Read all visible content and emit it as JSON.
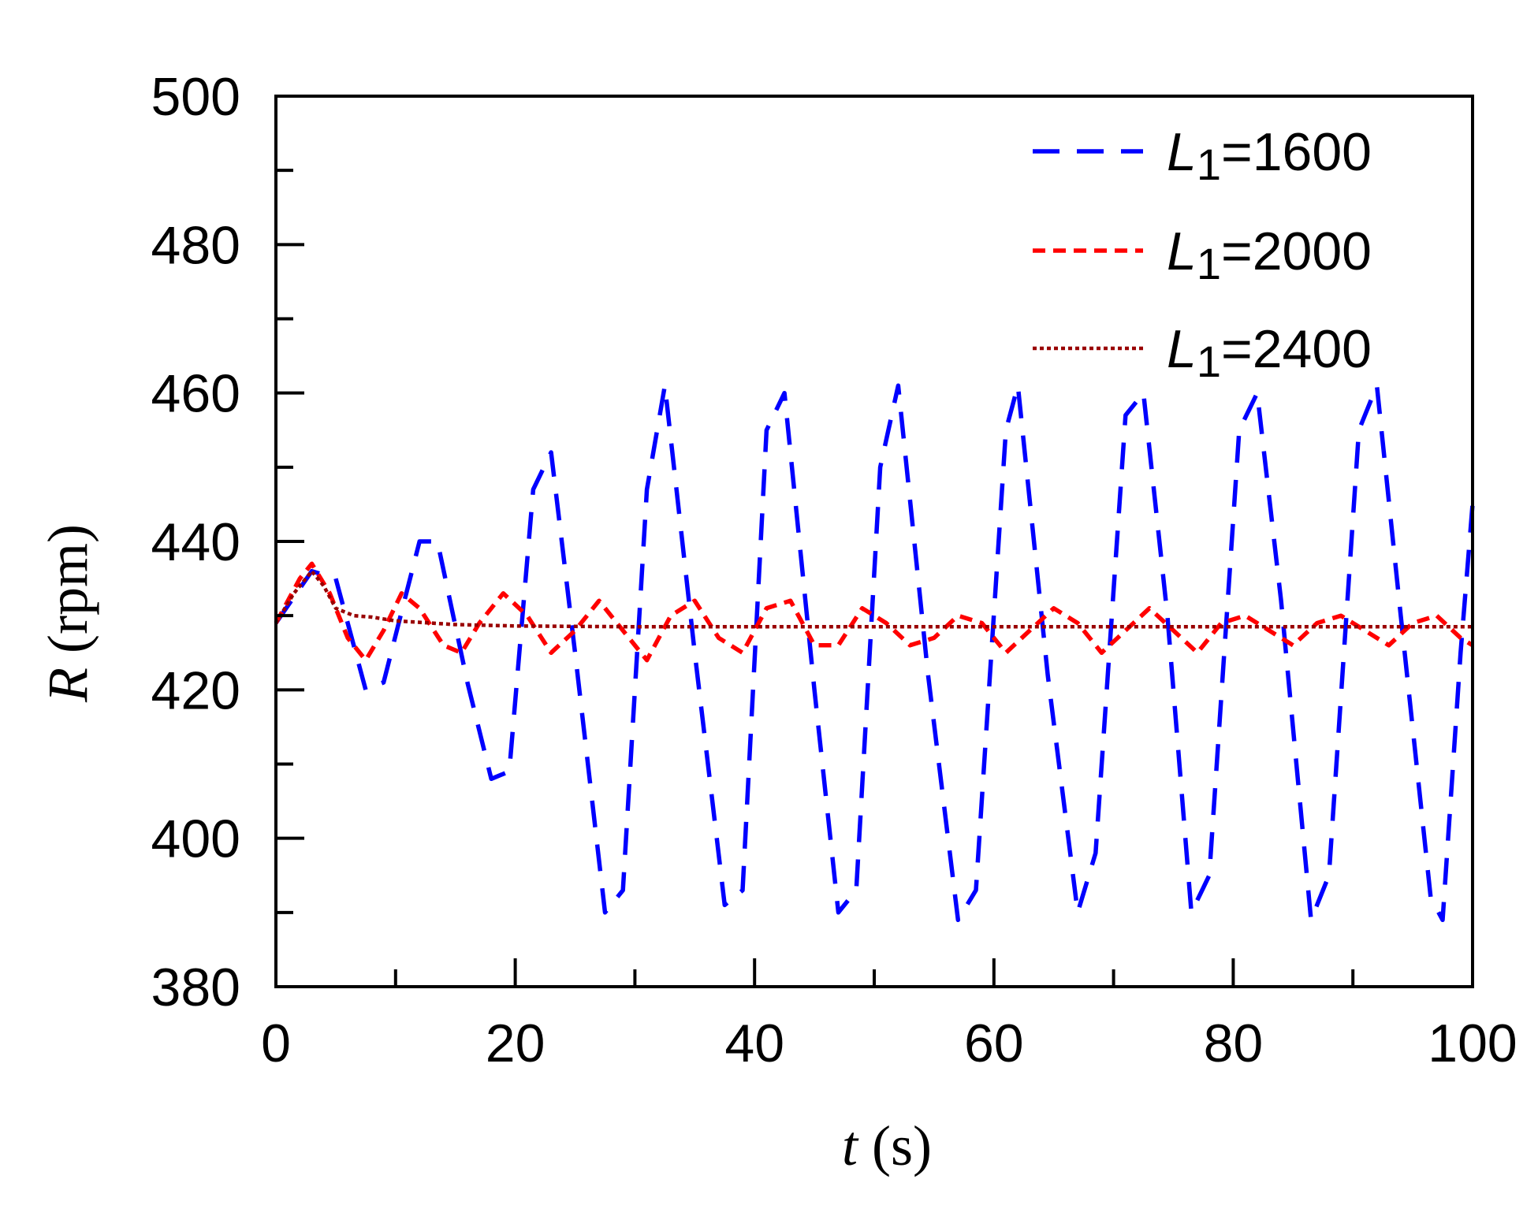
{
  "chart_data": {
    "type": "line",
    "xlabel": {
      "symbol": "t",
      "unit": " (s)"
    },
    "ylabel": {
      "symbol": "R",
      "unit": " (rpm)"
    },
    "xlim": [
      0,
      100
    ],
    "ylim": [
      380,
      500
    ],
    "xticks": [
      0,
      20,
      40,
      60,
      80,
      100
    ],
    "yticks": [
      380,
      400,
      420,
      440,
      460,
      480,
      500
    ],
    "x_minor_step": 10,
    "y_minor_step": 10,
    "grid": false,
    "legend_position": "top-right",
    "series": [
      {
        "name": {
          "symbol": "L",
          "subscript": "1",
          "value": "=1600"
        },
        "color": "#0000ff",
        "dash": "long-dash",
        "points": [
          [
            0,
            429
          ],
          [
            3,
            436
          ],
          [
            5,
            435
          ],
          [
            7.5,
            420
          ],
          [
            9,
            421
          ],
          [
            12,
            440
          ],
          [
            13.5,
            440
          ],
          [
            16,
            421
          ],
          [
            18,
            408
          ],
          [
            19.5,
            409
          ],
          [
            21.5,
            447
          ],
          [
            23,
            452
          ],
          [
            25,
            425
          ],
          [
            27.5,
            390
          ],
          [
            29,
            393
          ],
          [
            31,
            447
          ],
          [
            32.5,
            461
          ],
          [
            35,
            425
          ],
          [
            37.5,
            391
          ],
          [
            39,
            393
          ],
          [
            41,
            455
          ],
          [
            42.5,
            460
          ],
          [
            45,
            420
          ],
          [
            47,
            390
          ],
          [
            48.5,
            393
          ],
          [
            50.5,
            450
          ],
          [
            52,
            461
          ],
          [
            54.5,
            422
          ],
          [
            57,
            389
          ],
          [
            58.5,
            393
          ],
          [
            61,
            455
          ],
          [
            62,
            461
          ],
          [
            64.5,
            422
          ],
          [
            67,
            390
          ],
          [
            68.5,
            398
          ],
          [
            71,
            457
          ],
          [
            72.5,
            460
          ],
          [
            74.5,
            430
          ],
          [
            76.5,
            390
          ],
          [
            78,
            395
          ],
          [
            80.5,
            455
          ],
          [
            82,
            460
          ],
          [
            84,
            432
          ],
          [
            86.5,
            389
          ],
          [
            88,
            395
          ],
          [
            90.5,
            455
          ],
          [
            92,
            461
          ],
          [
            94,
            430
          ],
          [
            96.5,
            392
          ],
          [
            97.5,
            389
          ],
          [
            99,
            425
          ],
          [
            100,
            445
          ]
        ]
      },
      {
        "name": {
          "symbol": "L",
          "subscript": "1",
          "value": "=2000"
        },
        "color": "#ff0000",
        "dash": "short-dash",
        "points": [
          [
            0,
            429
          ],
          [
            2,
            435
          ],
          [
            3,
            437
          ],
          [
            4.5,
            433
          ],
          [
            6,
            427
          ],
          [
            7.5,
            424
          ],
          [
            9,
            428
          ],
          [
            10.5,
            433
          ],
          [
            12,
            431
          ],
          [
            14,
            426
          ],
          [
            15.5,
            425
          ],
          [
            17,
            429
          ],
          [
            19,
            433
          ],
          [
            21,
            430
          ],
          [
            23,
            425
          ],
          [
            25,
            428
          ],
          [
            27,
            432
          ],
          [
            29,
            428
          ],
          [
            31,
            424
          ],
          [
            33,
            430
          ],
          [
            35,
            432
          ],
          [
            37,
            427
          ],
          [
            39,
            425
          ],
          [
            41,
            431
          ],
          [
            43,
            432
          ],
          [
            45,
            426
          ],
          [
            47,
            426
          ],
          [
            49,
            431
          ],
          [
            51,
            429
          ],
          [
            53,
            426
          ],
          [
            55,
            427
          ],
          [
            57,
            430
          ],
          [
            59,
            429
          ],
          [
            61,
            425
          ],
          [
            63,
            428
          ],
          [
            65,
            431
          ],
          [
            67,
            429
          ],
          [
            69,
            425
          ],
          [
            71,
            428
          ],
          [
            73,
            431
          ],
          [
            75,
            428
          ],
          [
            77,
            425
          ],
          [
            79,
            429
          ],
          [
            81,
            430
          ],
          [
            83,
            428
          ],
          [
            85,
            426
          ],
          [
            87,
            429
          ],
          [
            89,
            430
          ],
          [
            91,
            428
          ],
          [
            93,
            426
          ],
          [
            95,
            429
          ],
          [
            97,
            430
          ],
          [
            99,
            427
          ],
          [
            100,
            426
          ]
        ]
      },
      {
        "name": {
          "symbol": "L",
          "subscript": "1",
          "value": "=2400"
        },
        "color": "#990000",
        "dash": "dotted",
        "points": [
          [
            0,
            429
          ],
          [
            1.5,
            433
          ],
          [
            3,
            436
          ],
          [
            4,
            434
          ],
          [
            5,
            431
          ],
          [
            6.5,
            430
          ],
          [
            8,
            429.8
          ],
          [
            10,
            429.3
          ],
          [
            15,
            428.8
          ],
          [
            20,
            428.6
          ],
          [
            30,
            428.5
          ],
          [
            50,
            428.5
          ],
          [
            70,
            428.5
          ],
          [
            100,
            428.5
          ]
        ]
      }
    ]
  }
}
